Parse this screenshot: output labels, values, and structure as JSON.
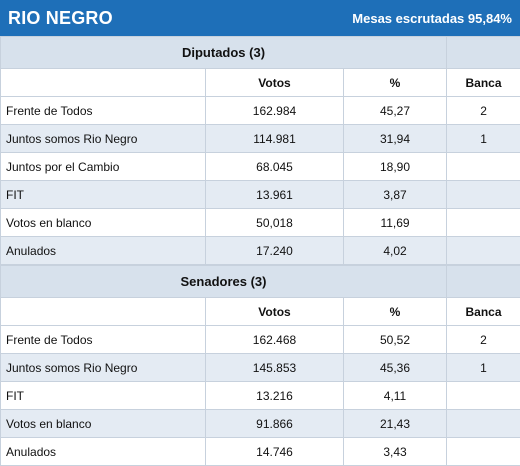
{
  "header": {
    "title": "RIO NEGRO",
    "subtitle": "Mesas escrutadas 95,84%"
  },
  "columns": {
    "votos": "Votos",
    "pct": "%",
    "banca": "Banca"
  },
  "diputados": {
    "title": "Diputados (3)",
    "rows": [
      {
        "party": "Frente de Todos",
        "votos": "162.984",
        "pct": "45,27",
        "banca": "2"
      },
      {
        "party": "Juntos somos Rio Negro",
        "votos": "114.981",
        "pct": "31,94",
        "banca": "1"
      },
      {
        "party": "Juntos por el Cambio",
        "votos": "68.045",
        "pct": "18,90",
        "banca": ""
      },
      {
        "party": "FIT",
        "votos": "13.961",
        "pct": "3,87",
        "banca": ""
      },
      {
        "party": "Votos en blanco",
        "votos": "50,018",
        "pct": "11,69",
        "banca": ""
      },
      {
        "party": "Anulados",
        "votos": "17.240",
        "pct": "4,02",
        "banca": ""
      }
    ]
  },
  "senadores": {
    "title": "Senadores (3)",
    "rows": [
      {
        "party": "Frente de Todos",
        "votos": "162.468",
        "pct": "50,52",
        "banca": "2"
      },
      {
        "party": "Juntos somos Rio Negro",
        "votos": "145.853",
        "pct": "45,36",
        "banca": "1"
      },
      {
        "party": "FIT",
        "votos": "13.216",
        "pct": "4,11",
        "banca": ""
      },
      {
        "party": "Votos en blanco",
        "votos": "91.866",
        "pct": "21,43",
        "banca": ""
      },
      {
        "party": "Anulados",
        "votos": "14.746",
        "pct": "3,43",
        "banca": ""
      }
    ]
  },
  "colors": {
    "header_bg": "#1e6fb8",
    "section_bg": "#d7e1ec",
    "alt_row_bg": "#e4ebf3",
    "border": "#c7d1dd"
  }
}
